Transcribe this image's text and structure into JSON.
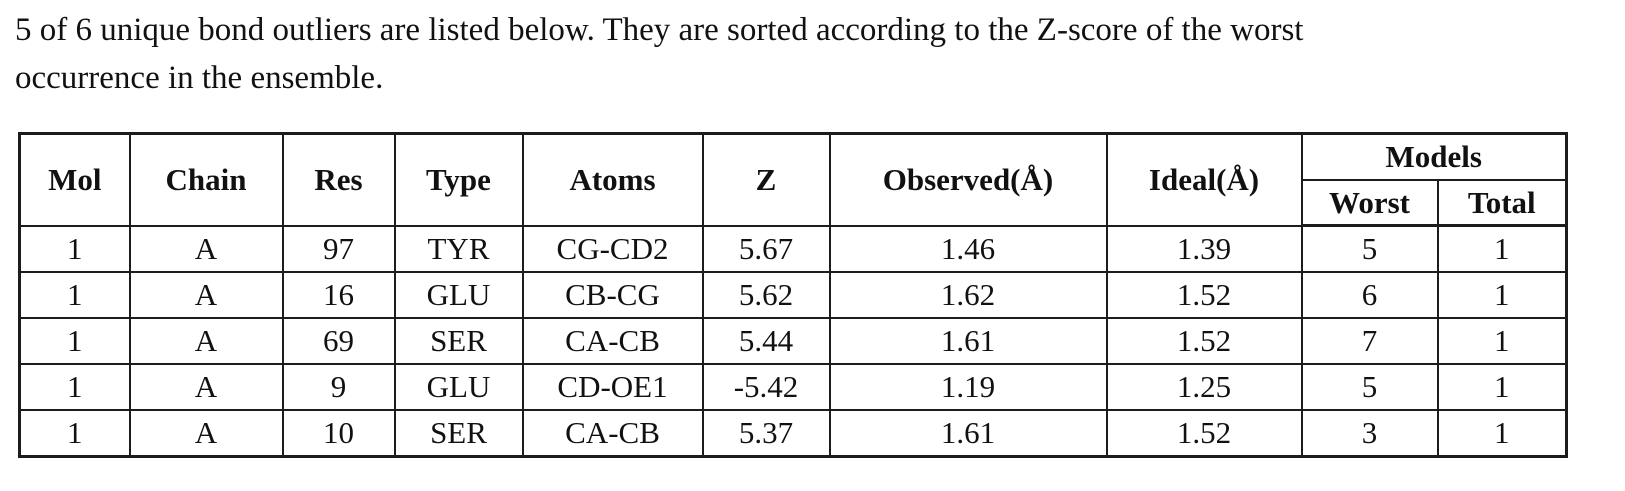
{
  "page": {
    "background": "#ffffff",
    "text_color": "#111111",
    "border_color": "#1c1c1c"
  },
  "intro": {
    "line1": "5 of 6 unique bond outliers are listed below. They are sorted according to the Z-score of the worst",
    "line2": "occurrence in the ensemble."
  },
  "table": {
    "headers": {
      "mol": "Mol",
      "chain": "Chain",
      "res": "Res",
      "type": "Type",
      "atoms": "Atoms",
      "z": "Z",
      "observed": "Observed(Å)",
      "ideal": "Ideal(Å)",
      "models": "Models",
      "worst": "Worst",
      "total": "Total"
    },
    "rows": [
      {
        "mol": "1",
        "chain": "A",
        "res": "97",
        "type": "TYR",
        "atoms": "CG-CD2",
        "z": "5.67",
        "observed": "1.46",
        "ideal": "1.39",
        "worst": "5",
        "total": "1"
      },
      {
        "mol": "1",
        "chain": "A",
        "res": "16",
        "type": "GLU",
        "atoms": "CB-CG",
        "z": "5.62",
        "observed": "1.62",
        "ideal": "1.52",
        "worst": "6",
        "total": "1"
      },
      {
        "mol": "1",
        "chain": "A",
        "res": "69",
        "type": "SER",
        "atoms": "CA-CB",
        "z": "5.44",
        "observed": "1.61",
        "ideal": "1.52",
        "worst": "7",
        "total": "1"
      },
      {
        "mol": "1",
        "chain": "A",
        "res": "9",
        "type": "GLU",
        "atoms": "CD-OE1",
        "z": "-5.42",
        "observed": "1.19",
        "ideal": "1.25",
        "worst": "5",
        "total": "1"
      },
      {
        "mol": "1",
        "chain": "A",
        "res": "10",
        "type": "SER",
        "atoms": "CA-CB",
        "z": "5.37",
        "observed": "1.61",
        "ideal": "1.52",
        "worst": "3",
        "total": "1"
      }
    ]
  }
}
